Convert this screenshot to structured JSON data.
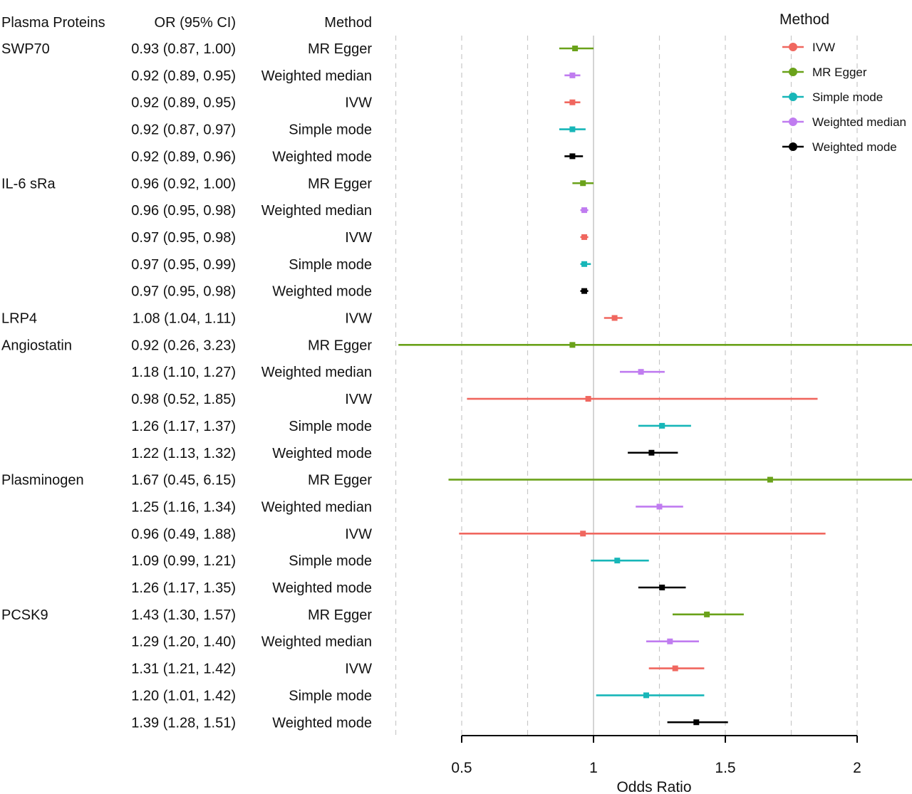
{
  "chart_data": {
    "type": "forest",
    "headers": {
      "protein": "Plasma Proteins",
      "or": "OR (95% CI)",
      "method": "Method"
    },
    "xlabel": "Odds Ratio",
    "x_ticks": [
      "0.5",
      "1",
      "1.5",
      "2"
    ],
    "xlim": [
      0.25,
      2.2
    ],
    "reference_line": 1,
    "legend": {
      "title": "Method",
      "position": "top-right",
      "entries": [
        "IVW",
        "MR Egger",
        "Simple mode",
        "Weighted median",
        "Weighted mode"
      ]
    },
    "colors": {
      "IVW": "#f0675f",
      "MR Egger": "#6aa21a",
      "Simple mode": "#17b6b8",
      "Weighted median": "#c07cf0",
      "Weighted mode": "#000000"
    },
    "rows": [
      {
        "protein": "SWP70",
        "or_text": "0.93 (0.87, 1.00)",
        "method": "MR Egger",
        "or": 0.93,
        "lo": 0.87,
        "hi": 1.0
      },
      {
        "protein": "",
        "or_text": "0.92 (0.89, 0.95)",
        "method": "Weighted median",
        "or": 0.92,
        "lo": 0.89,
        "hi": 0.95
      },
      {
        "protein": "",
        "or_text": "0.92 (0.89, 0.95)",
        "method": "IVW",
        "or": 0.92,
        "lo": 0.89,
        "hi": 0.95
      },
      {
        "protein": "",
        "or_text": "0.92 (0.87, 0.97)",
        "method": "Simple mode",
        "or": 0.92,
        "lo": 0.87,
        "hi": 0.97
      },
      {
        "protein": "",
        "or_text": "0.92 (0.89, 0.96)",
        "method": "Weighted mode",
        "or": 0.92,
        "lo": 0.89,
        "hi": 0.96
      },
      {
        "protein": "IL-6 sRa",
        "or_text": "0.96 (0.92, 1.00)",
        "method": "MR Egger",
        "or": 0.96,
        "lo": 0.92,
        "hi": 1.0
      },
      {
        "protein": "",
        "or_text": "0.96 (0.95, 0.98)",
        "method": "Weighted median",
        "or": 0.965,
        "lo": 0.95,
        "hi": 0.98
      },
      {
        "protein": "",
        "or_text": "0.97 (0.95, 0.98)",
        "method": "IVW",
        "or": 0.965,
        "lo": 0.95,
        "hi": 0.98
      },
      {
        "protein": "",
        "or_text": "0.97 (0.95, 0.99)",
        "method": "Simple mode",
        "or": 0.965,
        "lo": 0.95,
        "hi": 0.99
      },
      {
        "protein": "",
        "or_text": "0.97 (0.95, 0.98)",
        "method": "Weighted mode",
        "or": 0.965,
        "lo": 0.95,
        "hi": 0.98
      },
      {
        "protein": "LRP4",
        "or_text": "1.08 (1.04, 1.11)",
        "method": "IVW",
        "or": 1.08,
        "lo": 1.04,
        "hi": 1.11
      },
      {
        "protein": "Angiostatin",
        "or_text": "0.92 (0.26, 3.23)",
        "method": "MR Egger",
        "or": 0.92,
        "lo": 0.26,
        "hi": 3.23
      },
      {
        "protein": "",
        "or_text": "1.18 (1.10, 1.27)",
        "method": "Weighted median",
        "or": 1.18,
        "lo": 1.1,
        "hi": 1.27
      },
      {
        "protein": "",
        "or_text": "0.98 (0.52, 1.85)",
        "method": "IVW",
        "or": 0.98,
        "lo": 0.52,
        "hi": 1.85
      },
      {
        "protein": "",
        "or_text": "1.26 (1.17, 1.37)",
        "method": "Simple mode",
        "or": 1.26,
        "lo": 1.17,
        "hi": 1.37
      },
      {
        "protein": "",
        "or_text": "1.22 (1.13, 1.32)",
        "method": "Weighted mode",
        "or": 1.22,
        "lo": 1.13,
        "hi": 1.32
      },
      {
        "protein": "Plasminogen",
        "or_text": "1.67 (0.45, 6.15)",
        "method": "MR Egger",
        "or": 1.67,
        "lo": 0.45,
        "hi": 6.15
      },
      {
        "protein": "",
        "or_text": "1.25 (1.16, 1.34)",
        "method": "Weighted median",
        "or": 1.25,
        "lo": 1.16,
        "hi": 1.34
      },
      {
        "protein": "",
        "or_text": "0.96 (0.49, 1.88)",
        "method": "IVW",
        "or": 0.96,
        "lo": 0.49,
        "hi": 1.88
      },
      {
        "protein": "",
        "or_text": "1.09 (0.99, 1.21)",
        "method": "Simple mode",
        "or": 1.09,
        "lo": 0.99,
        "hi": 1.21
      },
      {
        "protein": "",
        "or_text": "1.26 (1.17, 1.35)",
        "method": "Weighted mode",
        "or": 1.26,
        "lo": 1.17,
        "hi": 1.35
      },
      {
        "protein": "PCSK9",
        "or_text": "1.43 (1.30, 1.57)",
        "method": "MR Egger",
        "or": 1.43,
        "lo": 1.3,
        "hi": 1.57
      },
      {
        "protein": "",
        "or_text": "1.29 (1.20, 1.40)",
        "method": "Weighted median",
        "or": 1.29,
        "lo": 1.2,
        "hi": 1.4
      },
      {
        "protein": "",
        "or_text": "1.31 (1.21, 1.42)",
        "method": "IVW",
        "or": 1.31,
        "lo": 1.21,
        "hi": 1.42
      },
      {
        "protein": "",
        "or_text": "1.20 (1.01, 1.42)",
        "method": "Simple mode",
        "or": 1.2,
        "lo": 1.01,
        "hi": 1.42
      },
      {
        "protein": "",
        "or_text": "1.39 (1.28, 1.51)",
        "method": "Weighted mode",
        "or": 1.39,
        "lo": 1.28,
        "hi": 1.51
      }
    ]
  }
}
